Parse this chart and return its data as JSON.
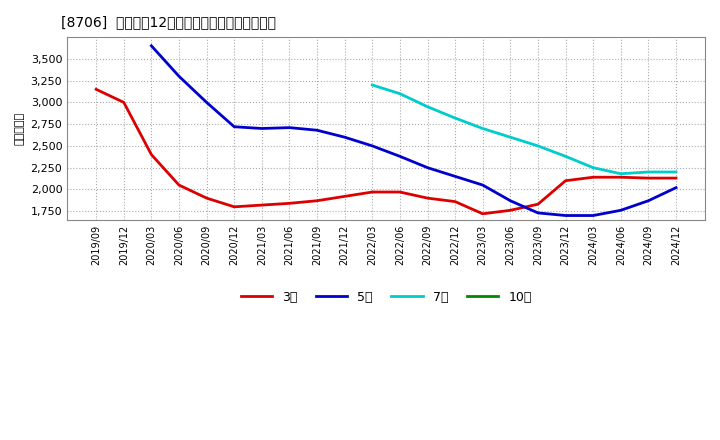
{
  "title": "[8706]  経常利益12か月移動合計の平均値の推移",
  "ylabel": "（百万円）",
  "background_color": "#ffffff",
  "plot_bg_color": "#ffffff",
  "grid_color": "#aaaaaa",
  "ylim": [
    1650,
    3750
  ],
  "yticks": [
    1750,
    2000,
    2250,
    2500,
    2750,
    3000,
    3250,
    3500
  ],
  "x_labels": [
    "2019/09",
    "2019/12",
    "2020/03",
    "2020/06",
    "2020/09",
    "2020/12",
    "2021/03",
    "2021/06",
    "2021/09",
    "2021/12",
    "2022/03",
    "2022/06",
    "2022/09",
    "2022/12",
    "2023/03",
    "2023/06",
    "2023/09",
    "2023/12",
    "2024/03",
    "2024/06",
    "2024/09",
    "2024/12"
  ],
  "series": {
    "3y": {
      "label": "3年",
      "color": "#dd0000",
      "values": [
        3150,
        3000,
        2400,
        2050,
        1900,
        1800,
        1820,
        1840,
        1870,
        1920,
        1970,
        1970,
        1900,
        1860,
        1720,
        1760,
        1830,
        2100,
        2140,
        2140,
        2130,
        2130
      ]
    },
    "5y": {
      "label": "5年",
      "color": "#0000cc",
      "values": [
        null,
        null,
        3650,
        3300,
        3000,
        2720,
        2700,
        2710,
        2680,
        2600,
        2500,
        2380,
        2250,
        2150,
        2050,
        1870,
        1730,
        1700,
        1700,
        1760,
        1870,
        2020
      ]
    },
    "7y": {
      "label": "7年",
      "color": "#00cccc",
      "values": [
        null,
        null,
        null,
        null,
        null,
        null,
        null,
        null,
        null,
        null,
        3200,
        3100,
        2950,
        2820,
        2700,
        2600,
        2500,
        2380,
        2250,
        2180,
        2200,
        2200
      ]
    },
    "10y": {
      "label": "10年",
      "color": "#008800",
      "values": [
        null,
        null,
        null,
        null,
        null,
        null,
        null,
        null,
        null,
        null,
        null,
        null,
        null,
        null,
        null,
        null,
        null,
        null,
        null,
        null,
        null,
        null
      ]
    }
  }
}
